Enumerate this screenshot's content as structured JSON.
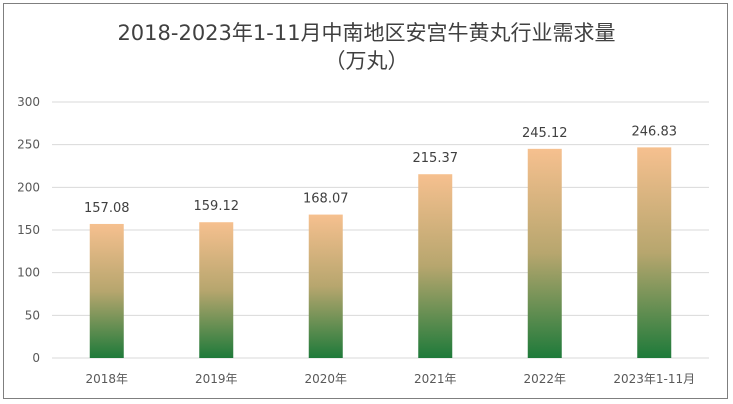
{
  "chart_data": {
    "type": "bar",
    "title_line1": "2018-2023年1-11月中南地区安宫牛黄丸行业需求量",
    "title_line2": "（万丸）",
    "categories": [
      "2018年",
      "2019年",
      "2020年",
      "2021年",
      "2022年",
      "2023年1-11月"
    ],
    "values": [
      157.08,
      159.12,
      168.07,
      215.37,
      245.12,
      246.83
    ],
    "data_labels": [
      "157.08",
      "159.12",
      "168.07",
      "215.37",
      "245.12",
      "246.83"
    ],
    "y_ticks": [
      "0",
      "50",
      "100",
      "150",
      "200",
      "250",
      "300"
    ],
    "ylim": [
      0,
      300
    ],
    "grid": true,
    "legend": "none",
    "bar_gradient": {
      "top": "#f6c08f",
      "middle": "#b7a66e",
      "bottom": "#1e7a3a"
    }
  }
}
